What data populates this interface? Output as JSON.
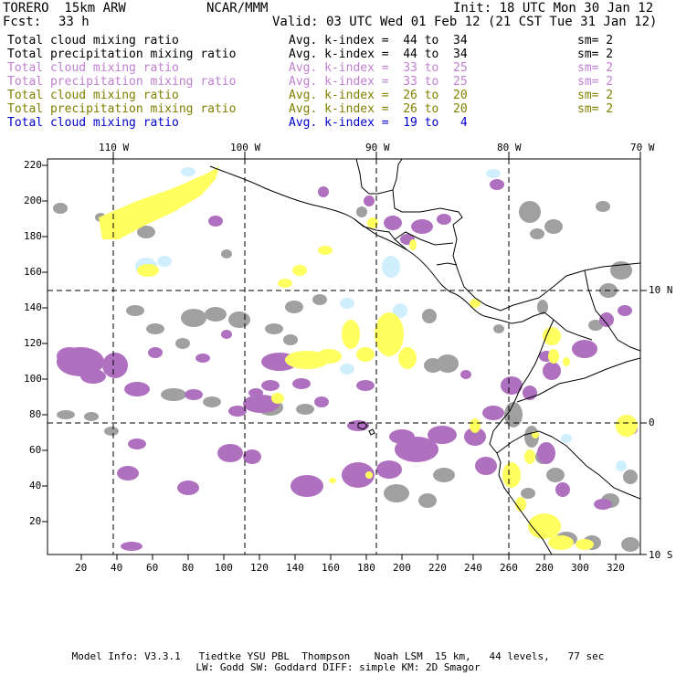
{
  "header": {
    "model": "TORERO  15km ARW",
    "org": "NCAR/MMM",
    "init": "Init: 18 UTC Mon 30 Jan 12",
    "fcst_label": "Fcst:",
    "fcst_value": "33 h",
    "valid": "Valid: 03 UTC Wed 01 Feb 12 (21 CST Tue 31 Jan 12)"
  },
  "legend": [
    {
      "field": "Total cloud mixing ratio",
      "index": "Avg. k-index =  44 to  34",
      "sm": "sm= 2",
      "color": "#000000"
    },
    {
      "field": "Total precipitation mixing ratio",
      "index": "Avg. k-index =  44 to  34",
      "sm": "sm= 2",
      "color": "#000000"
    },
    {
      "field": "Total cloud mixing ratio",
      "index": "Avg. k-index =  33 to  25",
      "sm": "sm= 2",
      "color": "#c080d0"
    },
    {
      "field": "Total precipitation mixing ratio",
      "index": "Avg. k-index =  33 to  25",
      "sm": "sm= 2",
      "color": "#c080d0"
    },
    {
      "field": "Total cloud mixing ratio",
      "index": "Avg. k-index =  26 to  20",
      "sm": "sm= 2",
      "color": "#808000"
    },
    {
      "field": "Total precipitation mixing ratio",
      "index": "Avg. k-index =  26 to  20",
      "sm": "sm= 2",
      "color": "#808000"
    },
    {
      "field": "Total cloud mixing ratio",
      "index": "Avg. k-index =  19 to   4",
      "sm": "",
      "color": "#0000cc"
    }
  ],
  "axes": {
    "top": [
      "110 W",
      "100 W",
      "90 W",
      "80 W",
      "70 W"
    ],
    "right": [
      "10 N",
      "0",
      "10 S"
    ],
    "left": [
      "220",
      "200",
      "180",
      "160",
      "140",
      "120",
      "100",
      "80",
      "60",
      "40",
      "20"
    ],
    "bottom": [
      "20",
      "40",
      "60",
      "80",
      "100",
      "120",
      "140",
      "160",
      "180",
      "200",
      "220",
      "240",
      "260",
      "280",
      "300",
      "320"
    ]
  },
  "colors": {
    "gray": "#a0a0a0",
    "purple": "#b070c0",
    "yellow": "#ffff60",
    "lightblue": "#cfefff"
  },
  "footer": {
    "line1": "Model Info: V3.3.1   Tiedtke YSU PBL  Thompson    Noah LSM  15 km,   44 levels,   77 sec",
    "line2": "LW: Godd SW: Goddard DIFF: simple KM: 2D Smagor"
  }
}
